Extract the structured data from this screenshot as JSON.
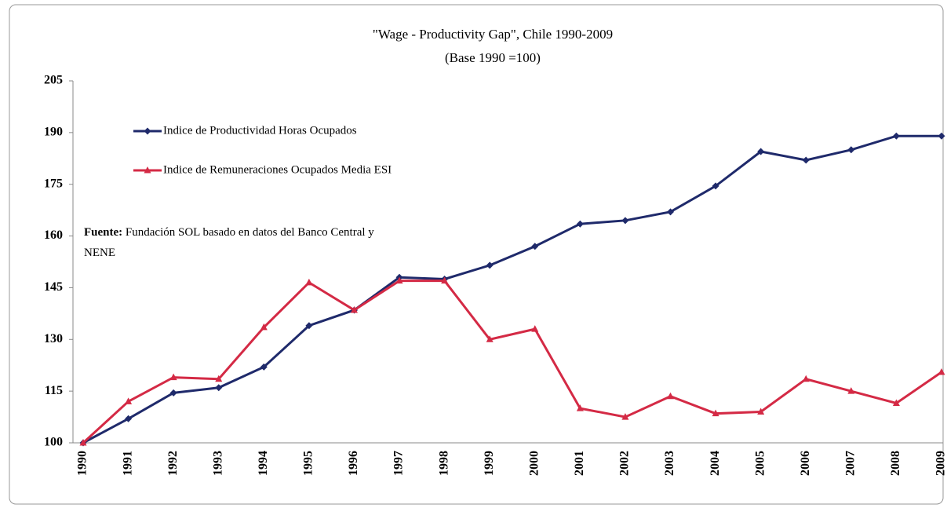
{
  "chart_data": {
    "type": "line",
    "title": "\"Wage - Productivity Gap\", Chile 1990-2009",
    "subtitle": "(Base 1990 =100)",
    "source_label": "Fuente:",
    "source_text": "Fundación SOL basado en datos del Banco Central y NENE",
    "categories": [
      "1990",
      "1991",
      "1992",
      "1993",
      "1994",
      "1995",
      "1996",
      "1997",
      "1998",
      "1999",
      "2000",
      "2001",
      "2002",
      "2003",
      "2004",
      "2005",
      "2006",
      "2007",
      "2008",
      "2009"
    ],
    "series": [
      {
        "name": "Indice de Productividad Horas Ocupados",
        "color": "#1f2a6b",
        "marker": "diamond",
        "values": [
          100,
          107,
          114.5,
          116,
          122,
          134,
          138.5,
          148,
          147.5,
          151.5,
          157,
          163.5,
          164.5,
          167,
          174.5,
          184.5,
          182,
          185,
          189,
          189
        ]
      },
      {
        "name": "Indice de Remuneraciones Ocupados Media ESI",
        "color": "#d42a45",
        "marker": "triangle",
        "values": [
          100,
          112,
          119,
          118.5,
          133.5,
          146.5,
          138.5,
          147,
          147,
          130,
          133,
          110,
          107.5,
          113.5,
          108.5,
          109,
          118.5,
          115,
          111.5,
          120.5
        ]
      }
    ],
    "ylim": [
      100,
      205
    ],
    "yticks": [
      100,
      115,
      130,
      145,
      160,
      175,
      190,
      205
    ],
    "legend": "upper left",
    "grid": false
  }
}
